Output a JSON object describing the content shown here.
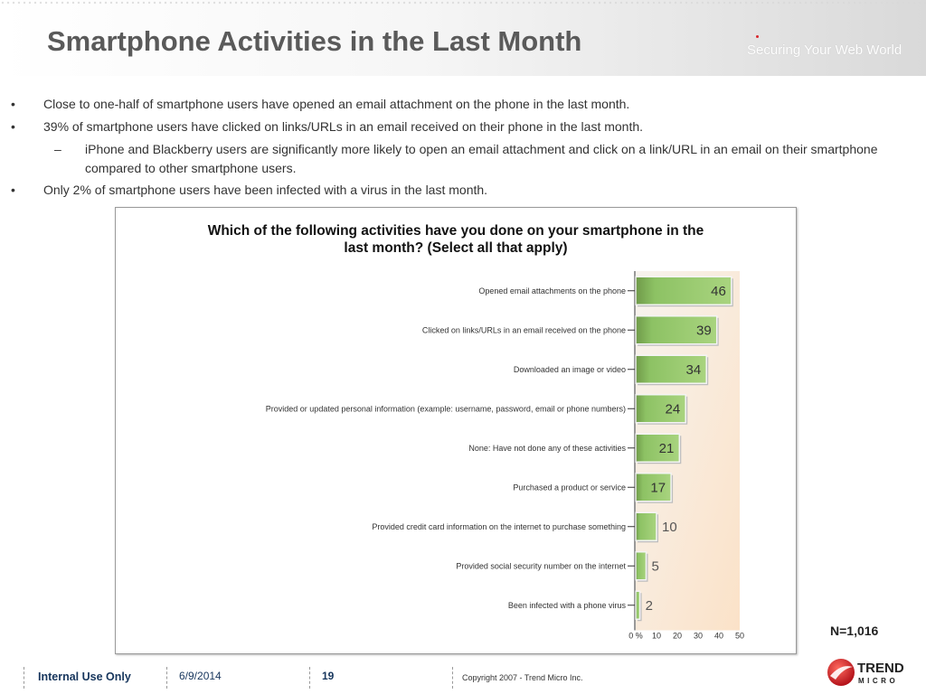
{
  "header": {
    "title": "Smartphone Activities in the Last Month",
    "tagline": "Securing Your Web World"
  },
  "bullets": [
    {
      "mark": "•",
      "text": "Close to one-half of smartphone users have opened an email attachment on the phone in the last month."
    },
    {
      "mark": "•",
      "text": "39% of smartphone users have clicked on links/URLs in an email received on their phone in the last month."
    },
    {
      "mark": "–",
      "text": "iPhone and Blackberry users are significantly more likely to open an email attachment and click on a link/URL in an email on their smartphone compared to other smartphone users."
    },
    {
      "mark": "•",
      "text": "Only 2% of smartphone users have been infected with a virus in the last month."
    }
  ],
  "chart_data": {
    "type": "bar",
    "orientation": "horizontal",
    "title": "Which of the following activities have you done on your smartphone in the last month?  (Select all that apply)",
    "title_lines": [
      "Which of the following activities have you done on your smartphone in the",
      "last month?  (Select all that apply)"
    ],
    "categories": [
      "Opened email attachments on the phone",
      "Clicked on links/URLs in an email received on the phone",
      "Downloaded an image or video",
      "Provided or updated personal information (example: username, password, email or phone numbers)",
      "None: Have not done any of these activities",
      "Purchased a product or service",
      "Provided credit card information on the internet to purchase something",
      "Provided social security number on the internet",
      "Been infected with a phone virus"
    ],
    "values": [
      46,
      39,
      34,
      24,
      21,
      17,
      10,
      5,
      2
    ],
    "xlim": [
      0,
      50
    ],
    "xticks": [
      0,
      10,
      20,
      30,
      40,
      50
    ],
    "xtick_labels": [
      "0 %",
      "10",
      "20",
      "30",
      "40",
      "50"
    ],
    "bar_color": "#8dc264"
  },
  "note": "N=1,016",
  "footer": {
    "internal": "Internal Use Only",
    "date": "6/9/2014",
    "page": "19",
    "copyright": "Copyright 2007 - Trend Micro Inc."
  },
  "logo": {
    "line1": "TREND",
    "line2": "MICRO",
    "color": "#d9262c"
  }
}
